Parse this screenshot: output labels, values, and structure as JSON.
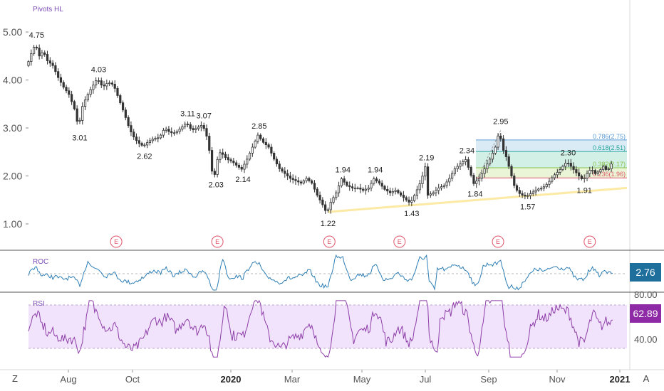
{
  "panel_label": "Pivots HL",
  "corner_left": "Z",
  "corner_right": "A",
  "colors": {
    "candle": "#333333",
    "support_line": "#fbe9a4",
    "roc_line": "#2f7fb5",
    "rsi_line": "#8e3ea8",
    "rsi_band": "#f0e3fb",
    "roc_badge": "#1f6f9d",
    "rsi_badge": "#8e2aa6",
    "earnings": "#e0556b",
    "price_axis_label": "#6a3bb0"
  },
  "chart_data": [
    {
      "type": "candlestick",
      "title": "Pivots HL",
      "yticks": [
        "5.00",
        "4.00",
        "3.00",
        "2.00",
        "1.00"
      ],
      "ylim": [
        0.5,
        5.5
      ],
      "xticks": [
        {
          "label": "Aug",
          "bold": false
        },
        {
          "label": "Oct",
          "bold": false
        },
        {
          "label": "2020",
          "bold": true
        },
        {
          "label": "Mar",
          "bold": false
        },
        {
          "label": "May",
          "bold": false
        },
        {
          "label": "Jul",
          "bold": false
        },
        {
          "label": "Sep",
          "bold": false
        },
        {
          "label": "Nov",
          "bold": false
        },
        {
          "label": "2021",
          "bold": true
        }
      ],
      "price_path": [
        [
          0,
          4.3
        ],
        [
          3,
          4.55
        ],
        [
          6,
          4.75
        ],
        [
          9,
          4.5
        ],
        [
          12,
          4.6
        ],
        [
          15,
          4.4
        ],
        [
          19,
          4.3
        ],
        [
          23,
          4.05
        ],
        [
          27,
          3.85
        ],
        [
          31,
          3.7
        ],
        [
          35,
          3.4
        ],
        [
          38,
          3.01
        ],
        [
          41,
          3.45
        ],
        [
          44,
          3.65
        ],
        [
          48,
          3.85
        ],
        [
          52,
          4.03
        ],
        [
          56,
          3.85
        ],
        [
          60,
          3.95
        ],
        [
          64,
          3.9
        ],
        [
          68,
          3.6
        ],
        [
          72,
          3.3
        ],
        [
          75,
          3.05
        ],
        [
          78,
          2.85
        ],
        [
          82,
          2.7
        ],
        [
          86,
          2.62
        ],
        [
          90,
          2.72
        ],
        [
          94,
          2.78
        ],
        [
          98,
          2.8
        ],
        [
          102,
          3.0
        ],
        [
          106,
          2.9
        ],
        [
          110,
          2.9
        ],
        [
          114,
          3.0
        ],
        [
          118,
          3.11
        ],
        [
          122,
          2.95
        ],
        [
          126,
          3.0
        ],
        [
          130,
          3.07
        ],
        [
          134,
          2.75
        ],
        [
          137,
          2.1
        ],
        [
          139,
          2.03
        ],
        [
          142,
          2.5
        ],
        [
          145,
          2.45
        ],
        [
          148,
          2.35
        ],
        [
          152,
          2.3
        ],
        [
          156,
          2.2
        ],
        [
          159,
          2.14
        ],
        [
          163,
          2.35
        ],
        [
          167,
          2.6
        ],
        [
          171,
          2.85
        ],
        [
          175,
          2.7
        ],
        [
          179,
          2.6
        ],
        [
          183,
          2.35
        ],
        [
          187,
          2.15
        ],
        [
          191,
          2.05
        ],
        [
          195,
          1.95
        ],
        [
          199,
          1.9
        ],
        [
          203,
          1.85
        ],
        [
          207,
          1.95
        ],
        [
          211,
          1.85
        ],
        [
          215,
          1.6
        ],
        [
          219,
          1.4
        ],
        [
          222,
          1.22
        ],
        [
          225,
          1.45
        ],
        [
          229,
          1.65
        ],
        [
          233,
          1.94
        ],
        [
          237,
          1.8
        ],
        [
          241,
          1.75
        ],
        [
          245,
          1.75
        ],
        [
          249,
          1.7
        ],
        [
          253,
          1.75
        ],
        [
          257,
          1.94
        ],
        [
          261,
          1.85
        ],
        [
          265,
          1.72
        ],
        [
          269,
          1.65
        ],
        [
          273,
          1.7
        ],
        [
          277,
          1.6
        ],
        [
          281,
          1.5
        ],
        [
          284,
          1.43
        ],
        [
          288,
          1.65
        ],
        [
          292,
          1.9
        ],
        [
          295,
          2.19
        ],
        [
          297,
          1.6
        ],
        [
          301,
          1.65
        ],
        [
          305,
          1.75
        ],
        [
          309,
          1.8
        ],
        [
          313,
          1.95
        ],
        [
          317,
          2.15
        ],
        [
          321,
          2.25
        ],
        [
          325,
          2.34
        ],
        [
          328,
          2.1
        ],
        [
          331,
          1.84
        ],
        [
          335,
          1.95
        ],
        [
          339,
          2.15
        ],
        [
          343,
          2.35
        ],
        [
          347,
          2.6
        ],
        [
          350,
          2.95
        ],
        [
          352,
          2.6
        ],
        [
          355,
          2.4
        ],
        [
          358,
          2.1
        ],
        [
          361,
          1.8
        ],
        [
          364,
          1.65
        ],
        [
          367,
          1.6
        ],
        [
          370,
          1.57
        ],
        [
          374,
          1.65
        ],
        [
          378,
          1.72
        ],
        [
          382,
          1.75
        ],
        [
          386,
          1.85
        ],
        [
          390,
          2.0
        ],
        [
          394,
          2.1
        ],
        [
          397,
          2.2
        ],
        [
          400,
          2.3
        ],
        [
          403,
          2.2
        ],
        [
          406,
          2.1
        ],
        [
          409,
          2.0
        ],
        [
          412,
          1.91
        ],
        [
          415,
          2.05
        ],
        [
          418,
          2.15
        ],
        [
          421,
          2.05
        ],
        [
          424,
          2.1
        ],
        [
          427,
          2.2
        ],
        [
          430,
          2.1
        ],
        [
          433,
          2.25
        ]
      ],
      "pivots": [
        {
          "label": "4.75",
          "t": 6,
          "y": 4.75,
          "pos": "above"
        },
        {
          "label": "3.01",
          "t": 38,
          "y": 3.01,
          "pos": "below"
        },
        {
          "label": "4.03",
          "t": 52,
          "y": 4.03,
          "pos": "above"
        },
        {
          "label": "2.62",
          "t": 86,
          "y": 2.62,
          "pos": "below"
        },
        {
          "label": "3.11",
          "t": 118,
          "y": 3.11,
          "pos": "above"
        },
        {
          "label": "3.07",
          "t": 130,
          "y": 3.07,
          "pos": "above"
        },
        {
          "label": "2.03",
          "t": 139,
          "y": 2.03,
          "pos": "below"
        },
        {
          "label": "2.14",
          "t": 159,
          "y": 2.14,
          "pos": "below"
        },
        {
          "label": "2.85",
          "t": 171,
          "y": 2.85,
          "pos": "above"
        },
        {
          "label": "1.22",
          "t": 222,
          "y": 1.22,
          "pos": "below"
        },
        {
          "label": "1.94",
          "t": 233,
          "y": 1.94,
          "pos": "above"
        },
        {
          "label": "1.94",
          "t": 257,
          "y": 1.94,
          "pos": "above"
        },
        {
          "label": "1.43",
          "t": 284,
          "y": 1.43,
          "pos": "below"
        },
        {
          "label": "2.19",
          "t": 295,
          "y": 2.19,
          "pos": "above"
        },
        {
          "label": "2.34",
          "t": 325,
          "y": 2.34,
          "pos": "above"
        },
        {
          "label": "1.84",
          "t": 331,
          "y": 1.84,
          "pos": "below"
        },
        {
          "label": "2.95",
          "t": 350,
          "y": 2.95,
          "pos": "above"
        },
        {
          "label": "1.57",
          "t": 370,
          "y": 1.57,
          "pos": "below"
        },
        {
          "label": "2.30",
          "t": 400,
          "y": 2.3,
          "pos": "above"
        },
        {
          "label": "1.91",
          "t": 412,
          "y": 1.91,
          "pos": "below"
        }
      ],
      "fib_levels": [
        {
          "label": "0.786(2.75)",
          "value": 2.75,
          "color": "#5b9bd5",
          "fill": "#d6e9f5"
        },
        {
          "label": "0.618(2.51)",
          "value": 2.51,
          "color": "#26a69a",
          "fill": "#cdeee2"
        },
        {
          "label": "0.382(2.17)",
          "value": 2.17,
          "color": "#8bc34a",
          "fill": "#e8f4d3"
        },
        {
          "label": "0.236(1.96)",
          "value": 1.96,
          "color": "#e05a6a",
          "fill": ""
        }
      ],
      "support_line": {
        "from": [
          222,
          1.25
        ],
        "to": [
          470,
          1.75
        ]
      },
      "earnings": [
        {
          "label": "E",
          "t": 65
        },
        {
          "label": "E",
          "t": 140
        },
        {
          "label": "E",
          "t": 223
        },
        {
          "label": "E",
          "t": 275
        },
        {
          "label": "E",
          "t": 348
        },
        {
          "label": "E",
          "t": 416
        }
      ]
    },
    {
      "type": "line",
      "title": "ROC",
      "last_value": "2.76"
    },
    {
      "type": "line",
      "title": "RSI",
      "yticks": [
        "80.00",
        "40.00"
      ],
      "band": [
        30,
        70
      ],
      "last_value": "62.89"
    }
  ]
}
